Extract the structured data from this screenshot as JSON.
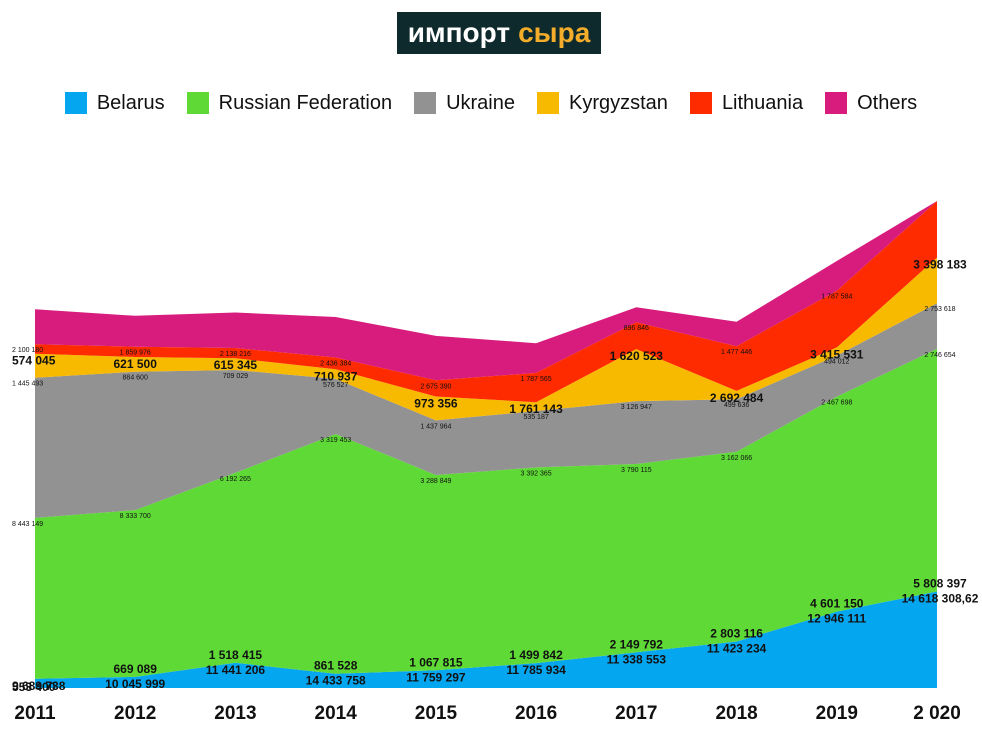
{
  "title": {
    "part1": "импорт",
    "part2": "сыра"
  },
  "colors": {
    "title_bg": "#0f2a2c",
    "title_accent": "#f4ad2a"
  },
  "chart_data": {
    "type": "area",
    "stacked": true,
    "x": [
      "2011",
      "2012",
      "2013",
      "2014",
      "2015",
      "2016",
      "2017",
      "2018",
      "2019",
      "2 020"
    ],
    "series": [
      {
        "name": "Belarus",
        "color": "#05a6f0",
        "values": [
          553400,
          669089,
          1518415,
          861528,
          1067815,
          1499842,
          2149792,
          2803116,
          4601150,
          5808397
        ],
        "labels": [
          "553 400",
          "669 089",
          "1 518 415",
          "861 528",
          "1 067 815",
          "1 499 842",
          "2 149 792",
          "2 803 116",
          "4 601 150",
          "5 808 397"
        ]
      },
      {
        "name": "Russian Federation",
        "color": "#5ed936",
        "values": [
          9689738,
          10045999,
          11441206,
          14433758,
          11759297,
          11785934,
          11338553,
          11423234,
          12946111,
          14618308.62
        ],
        "labels": [
          "9 689 738",
          "10 045 999",
          "11 441 206",
          "14 433 758",
          "11 759 297",
          "11 785 934",
          "11 338 553",
          "11 423 234",
          "12 946 111",
          "14 618 308,62"
        ]
      },
      {
        "name": "Ukraine",
        "color": "#929292",
        "values": [
          8443149,
          8333700,
          6192265,
          3319453,
          3288849,
          3392365,
          3790115,
          3162066,
          2467698,
          2746654
        ],
        "labels": [
          "8 443 149",
          "8 333 700",
          "6 192 265",
          "3 319 453",
          "3 288 849",
          "3 392 365",
          "3 790 115",
          "3 162 066",
          "2 467 698",
          "2 746 654"
        ]
      },
      {
        "name": "Kyrgyzstan",
        "color": "#f7ba00",
        "values": [
          1445493,
          884600,
          709029,
          576527,
          1437964,
          535187,
          3126947,
          499636,
          494012,
          2753618
        ],
        "labels": [
          "1 445 493",
          "884 600",
          "709 029",
          "576 527",
          "1 437 964",
          "535 187",
          "3 126 947",
          "499 636",
          "494 012",
          "2 753 618"
        ]
      },
      {
        "name": "Lithuania",
        "color": "#fe2a00",
        "values": [
          574045,
          621500,
          615345,
          710937,
          973356,
          1761143,
          1620523,
          2692484,
          3415531,
          3398183
        ],
        "labels": [
          "574 045",
          "621 500",
          "615 345",
          "710 937",
          "973 356",
          "1 761 143",
          "1 620 523",
          "2 692 484",
          "3 415 531",
          "3 398 183"
        ]
      },
      {
        "name": "Others",
        "color": "#d71c7d",
        "values": [
          2100180,
          1859976,
          2138216,
          2436384,
          2675390,
          1787565,
          896846,
          1477446,
          1787584,
          0
        ],
        "labels": [
          "2 100 180",
          "1 859 976",
          "2 138 216",
          "2 436 384",
          "2 675 390",
          "1 787 565",
          "896 846",
          "1 477 446",
          "1 787 584",
          ""
        ]
      }
    ],
    "ylim": [
      0,
      33000000
    ],
    "legend_position": "top",
    "grid": false,
    "title": "",
    "xlabel": "",
    "ylabel": ""
  }
}
